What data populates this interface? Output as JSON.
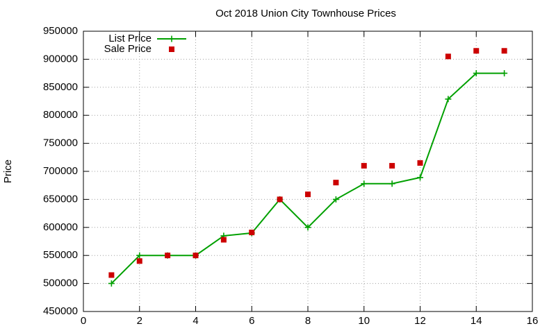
{
  "chart_data": {
    "type": "line",
    "title": "Oct 2018 Union City Townhouse Prices",
    "y_label": "Price",
    "x": [
      1,
      2,
      3,
      4,
      5,
      6,
      7,
      8,
      9,
      10,
      11,
      12,
      13,
      14,
      15
    ],
    "series": [
      {
        "name": "List Price",
        "color": "#00a000",
        "mode": "lines+markers",
        "values": [
          500000,
          550000,
          550000,
          550000,
          585000,
          590000,
          650000,
          600000,
          650000,
          678000,
          678000,
          689000,
          829000,
          875000,
          875000
        ]
      },
      {
        "name": "Sale Price",
        "color": "#cc0000",
        "mode": "markers",
        "values": [
          515000,
          540000,
          550000,
          550000,
          578000,
          591000,
          650000,
          659000,
          680000,
          710000,
          710000,
          715000,
          905000,
          915000,
          915000
        ]
      }
    ],
    "xlim": [
      0,
      16
    ],
    "xticks": [
      0,
      2,
      4,
      6,
      8,
      10,
      12,
      14,
      16
    ],
    "ylim": [
      450000,
      950000
    ],
    "yticks": [
      450000,
      500000,
      550000,
      600000,
      650000,
      700000,
      750000,
      800000,
      850000,
      900000,
      950000
    ],
    "grid": true,
    "legend": "top-left"
  }
}
